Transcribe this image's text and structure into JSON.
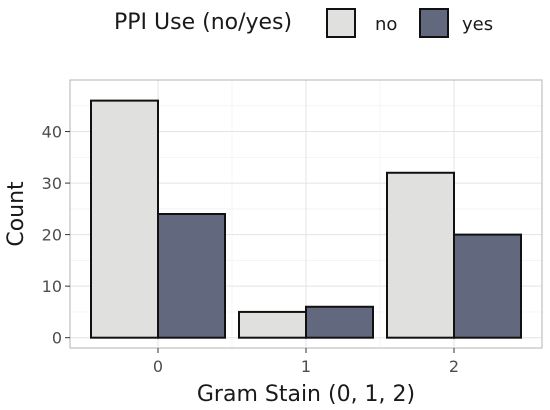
{
  "chart_data": {
    "type": "bar",
    "title": "",
    "xlabel": "Gram Stain (0, 1, 2)",
    "ylabel": "Count",
    "categories": [
      "0",
      "1",
      "2"
    ],
    "series": [
      {
        "name": "no",
        "values": [
          46,
          5,
          32
        ],
        "color": "#e0e0de"
      },
      {
        "name": "yes",
        "values": [
          24,
          6,
          20
        ],
        "color": "#62697f"
      }
    ],
    "ylim": [
      -2,
      50
    ],
    "yticks": [
      0,
      10,
      20,
      30,
      40
    ],
    "grid": true,
    "legend": {
      "title": "PPI Use (no/yes)",
      "placement": "top"
    }
  }
}
